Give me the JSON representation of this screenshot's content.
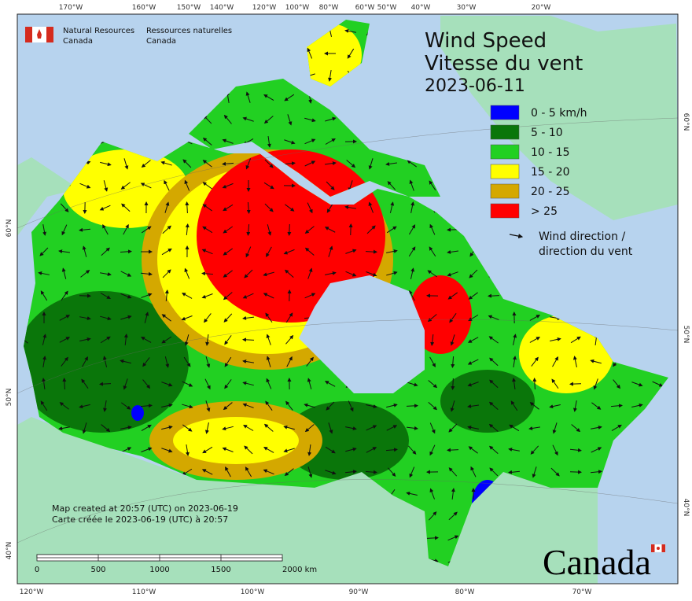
{
  "header": {
    "agency_en": "Natural Resources",
    "country_en": "Canada",
    "agency_fr": "Ressources naturelles",
    "country_fr": "Canada"
  },
  "title": {
    "en": "Wind Speed",
    "fr": "Vitesse du vent",
    "date": "2023-06-11"
  },
  "legend": {
    "items": [
      {
        "label": "0 - 5 km/h",
        "color": "#0000ff"
      },
      {
        "label": "5 - 10",
        "color": "#0a760a"
      },
      {
        "label": "10 - 15",
        "color": "#22d022"
      },
      {
        "label": "15 - 20",
        "color": "#ffff00"
      },
      {
        "label": "20 - 25",
        "color": "#d4a800"
      },
      {
        "label": "> 25",
        "color": "#ff0000"
      }
    ],
    "arrow_label": [
      "Wind direction /",
      "direction du vent"
    ]
  },
  "graticule": {
    "top": [
      "170°W",
      "160°W",
      "150°W",
      "140°W",
      "120°W",
      "100°W",
      "80°W",
      "60°W",
      "50°W",
      "40°W",
      "30°W",
      "20°W"
    ],
    "bottom": [
      "120°W",
      "110°W",
      "100°W",
      "90°W",
      "80°W",
      "70°W"
    ],
    "left": [
      "60°N",
      "50°N",
      "40°N"
    ],
    "right": [
      "60°N",
      "50°N",
      "40°N"
    ]
  },
  "footer": {
    "created_en": "Map created at 20:57 (UTC) on 2023-06-19",
    "created_fr": "Carte créée le 2023-06-19 (UTC) à 20:57"
  },
  "scale_bar": {
    "ticks": [
      "0",
      "500",
      "1000",
      "1500",
      "2000 km"
    ]
  },
  "wordmark": "Canada"
}
